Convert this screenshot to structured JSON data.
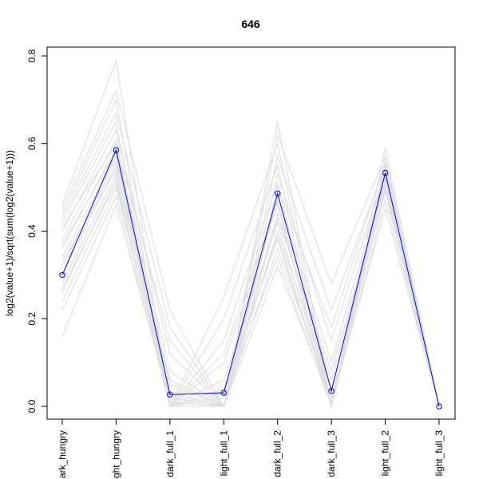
{
  "chart_data": {
    "type": "line",
    "title": "646",
    "xlabel": "",
    "ylabel": "log2(value+1)/sqrt(sum(log2(value+1)))",
    "ylim": [
      0,
      0.8
    ],
    "yticks": [
      "0.0",
      "0.2",
      "0.4",
      "0.6",
      "0.8"
    ],
    "categories": [
      "dark_hungry",
      "light_hungry",
      "dark_full_1",
      "light_full_1",
      "dark_full_2",
      "dark_full_3",
      "light_full_2",
      "light_full_3"
    ],
    "tick_labels": [
      "ark_hungry",
      "ight_hungry",
      "dark_full_1",
      "light_full_1",
      "dark_full_2",
      "dark_full_3",
      "light_full_2",
      "light_full_3"
    ],
    "highlight": {
      "color": "#0000ff",
      "values": [
        0.3,
        0.585,
        0.027,
        0.031,
        0.486,
        0.035,
        0.533,
        0.0
      ]
    },
    "background_color": "#e0e0e0",
    "background_series": [
      [
        0.46,
        0.79,
        0.0,
        0.0,
        0.65,
        0.0,
        0.59,
        0.0
      ],
      [
        0.45,
        0.72,
        0.22,
        0.0,
        0.62,
        0.28,
        0.57,
        0.0
      ],
      [
        0.44,
        0.7,
        0.0,
        0.25,
        0.6,
        0.0,
        0.56,
        0.0
      ],
      [
        0.43,
        0.67,
        0.18,
        0.0,
        0.57,
        0.22,
        0.55,
        0.0
      ],
      [
        0.42,
        0.65,
        0.0,
        0.2,
        0.55,
        0.0,
        0.55,
        0.0
      ],
      [
        0.4,
        0.63,
        0.12,
        0.0,
        0.53,
        0.15,
        0.54,
        0.0
      ],
      [
        0.38,
        0.61,
        0.0,
        0.15,
        0.51,
        0.0,
        0.54,
        0.0
      ],
      [
        0.36,
        0.59,
        0.08,
        0.0,
        0.48,
        0.1,
        0.53,
        0.0
      ],
      [
        0.34,
        0.57,
        0.0,
        0.1,
        0.46,
        0.0,
        0.53,
        0.0
      ],
      [
        0.32,
        0.56,
        0.05,
        0.0,
        0.44,
        0.06,
        0.52,
        0.0
      ],
      [
        0.3,
        0.55,
        0.0,
        0.06,
        0.42,
        0.0,
        0.52,
        0.0
      ],
      [
        0.28,
        0.53,
        0.03,
        0.0,
        0.4,
        0.04,
        0.51,
        0.0
      ],
      [
        0.26,
        0.52,
        0.0,
        0.04,
        0.38,
        0.0,
        0.5,
        0.0
      ],
      [
        0.24,
        0.5,
        0.02,
        0.0,
        0.36,
        0.02,
        0.49,
        0.0
      ],
      [
        0.22,
        0.48,
        0.0,
        0.02,
        0.34,
        0.0,
        0.47,
        0.0
      ],
      [
        0.16,
        0.46,
        0.01,
        0.0,
        0.32,
        0.01,
        0.45,
        0.0
      ],
      [
        0.41,
        0.6,
        0.15,
        0.0,
        0.5,
        0.18,
        0.56,
        0.0
      ],
      [
        0.37,
        0.58,
        0.0,
        0.12,
        0.47,
        0.0,
        0.53,
        0.0
      ],
      [
        0.33,
        0.54,
        0.06,
        0.0,
        0.43,
        0.08,
        0.51,
        0.0
      ],
      [
        0.27,
        0.51,
        0.0,
        0.03,
        0.39,
        0.0,
        0.5,
        0.0
      ]
    ]
  }
}
